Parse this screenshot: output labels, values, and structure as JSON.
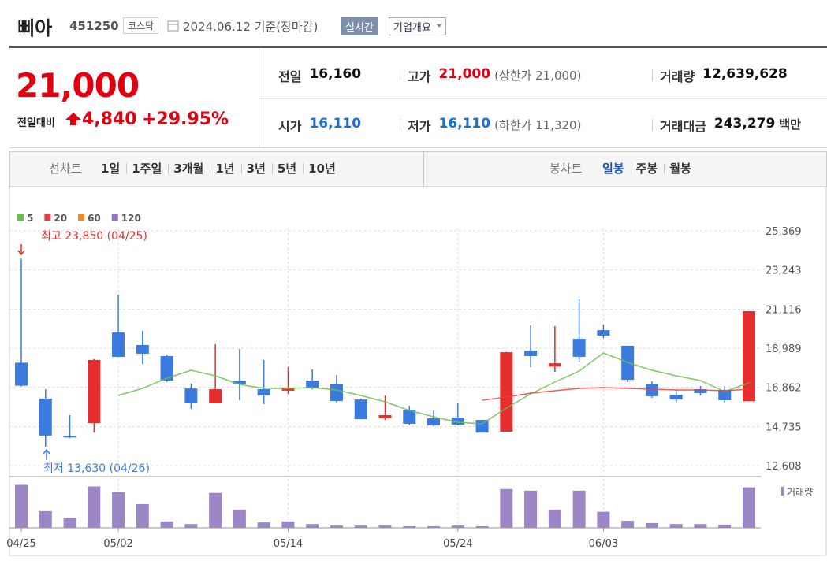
{
  "header": {
    "name": "삐아",
    "code": "451250",
    "market": "코스닥",
    "date": "2024.06.12 기준(장마감)",
    "buttons": [
      "실시간",
      "기업개요"
    ]
  },
  "price": {
    "current": "21,000",
    "change_label": "전일대비",
    "change": "4,840",
    "change_rate": "+29.95%"
  },
  "summary": {
    "rows": [
      [
        {
          "label": "전일",
          "value": "16,160"
        },
        {
          "label": "고가",
          "value": "21,000",
          "note": "(상한가 21,000)"
        },
        {
          "label": "거래량",
          "value": "12,639,628"
        }
      ],
      [
        {
          "label": "시가",
          "value": "16,110"
        },
        {
          "label": "저가",
          "value": "16,110",
          "note": "(하한가 11,320)"
        },
        {
          "label": "거래대금",
          "value": "243,279",
          "unit": "백만"
        }
      ]
    ]
  },
  "line_tabs": {
    "label": "선차트",
    "items": [
      "1일",
      "1주일",
      "3개월",
      "1년",
      "3년",
      "5년",
      "10년"
    ]
  },
  "candle_tabs": {
    "label": "봉차트",
    "items": [
      "일봉",
      "주봉",
      "월봉"
    ],
    "selected": 0
  },
  "chart_data": {
    "type": "candlestick",
    "categories": [
      "04/25",
      null,
      null,
      null,
      "05/02",
      null,
      null,
      null,
      null,
      null,
      null,
      "05/14",
      null,
      null,
      null,
      null,
      null,
      null,
      "05/24",
      null,
      null,
      null,
      null,
      null,
      "06/03",
      null,
      null,
      null,
      null,
      null,
      null
    ],
    "open": [
      18200,
      16250,
      14200,
      14920,
      19850,
      19160,
      18560,
      16800,
      15990,
      17230,
      16760,
      16680,
      17230,
      17020,
      16200,
      15180,
      15650,
      15180,
      15220,
      15090,
      14450,
      18860,
      17990,
      19500,
      19970,
      19120,
      17020,
      16460,
      16760,
      16720,
      16110
    ],
    "high": [
      23850,
      16760,
      15350,
      18400,
      21900,
      19930,
      18650,
      17060,
      19200,
      18950,
      18350,
      17960,
      17830,
      17530,
      16250,
      16420,
      15860,
      15600,
      15990,
      15090,
      18800,
      20230,
      20190,
      21640,
      20270,
      19120,
      17190,
      16720,
      16930,
      16930,
      21000
    ],
    "low": [
      16900,
      13630,
      14100,
      14400,
      18500,
      18130,
      17150,
      15690,
      15990,
      16160,
      15950,
      16500,
      16760,
      16030,
      15130,
      15090,
      14790,
      14750,
      14790,
      14400,
      14450,
      17960,
      17700,
      18220,
      19540,
      17150,
      16290,
      16000,
      16420,
      16030,
      16110
    ],
    "close": [
      16950,
      14240,
      14150,
      18350,
      18520,
      18690,
      17230,
      15990,
      16760,
      17060,
      16420,
      16850,
      16850,
      16120,
      15130,
      15350,
      14880,
      14790,
      14830,
      14400,
      18770,
      18560,
      18170,
      18520,
      19670,
      17270,
      16380,
      16200,
      16550,
      16160,
      21000
    ],
    "up_color": "#e52e2e",
    "down_color": "#3b7be0",
    "ylim": [
      12608,
      25369
    ],
    "yticks": [
      {
        "value": 12608,
        "label": "12,608"
      },
      {
        "value": 14735,
        "label": "14,735"
      },
      {
        "value": 16862,
        "label": "16,862"
      },
      {
        "value": 18989,
        "label": "18,989"
      },
      {
        "value": 21116,
        "label": "21,116"
      },
      {
        "value": 23243,
        "label": "23,243"
      },
      {
        "value": 25369,
        "label": "25,369"
      }
    ],
    "grid": true,
    "series": [
      {
        "name": "5",
        "color": "#66c14a",
        "values": [
          null,
          null,
          null,
          null,
          16419,
          16804,
          17361,
          17789,
          17489,
          17018,
          16804,
          16804,
          16847,
          16719,
          16419,
          16076,
          15605,
          15263,
          14963,
          14877,
          15734,
          16505,
          17147,
          17746,
          18731,
          18217,
          17789,
          17489,
          17233,
          16633,
          17104
        ]
      },
      {
        "name": "20",
        "color": "#e84040",
        "values": [
          null,
          null,
          null,
          null,
          null,
          null,
          null,
          null,
          null,
          null,
          null,
          null,
          null,
          null,
          null,
          null,
          null,
          null,
          null,
          16162,
          16333,
          16547,
          16676,
          16804,
          16847,
          16804,
          16762,
          16719,
          16719,
          16676,
          16762
        ]
      },
      {
        "name": "60",
        "color": "#f08a24",
        "values": [
          null,
          null,
          null,
          null,
          null,
          null,
          null,
          null,
          null,
          null,
          null,
          null,
          null,
          null,
          null,
          null,
          null,
          null,
          null,
          null,
          null,
          null,
          null,
          null,
          null,
          null,
          null,
          null,
          null,
          null,
          null
        ]
      },
      {
        "name": "120",
        "color": "#9a6fc4",
        "values": [
          null,
          null,
          null,
          null,
          null,
          null,
          null,
          null,
          null,
          null,
          null,
          null,
          null,
          null,
          null,
          null,
          null,
          null,
          null,
          null,
          null,
          null,
          null,
          null,
          null,
          null,
          null,
          null,
          null,
          null,
          null
        ]
      }
    ],
    "annotations": [
      "최고 23,850 (04/25)",
      "최저 13,630 (04/26)"
    ],
    "volume": {
      "name": "거래량",
      "color": "#9d86c6",
      "ylim": [
        0,
        15000000
      ],
      "values": [
        13400000,
        5200000,
        3200000,
        12900000,
        11200000,
        7400000,
        2000000,
        1200000,
        10900000,
        5700000,
        1700000,
        2000000,
        1200000,
        700000,
        700000,
        700000,
        500000,
        500000,
        700000,
        500000,
        12100000,
        11600000,
        5700000,
        11600000,
        5000000,
        2200000,
        1500000,
        1200000,
        1200000,
        1000000,
        12639628
      ]
    }
  }
}
